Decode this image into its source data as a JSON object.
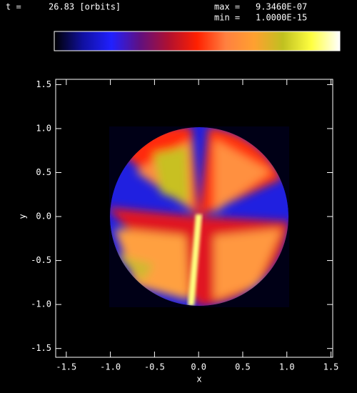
{
  "chart_data": {
    "type": "image",
    "time_label": "t =",
    "time": "26.83 [orbits]",
    "colorbar": {
      "max_label": "max =",
      "max": {
        "value": 9.346e-07,
        "label": "9.3460E-07"
      },
      "min_label": "min =",
      "min": {
        "value": 1e-15,
        "label": "1.0000E-15"
      },
      "colormap": [
        "#000000",
        "#1010a0",
        "#2020ff",
        "#601080",
        "#b01030",
        "#ff2000",
        "#ff8040",
        "#ffa030",
        "#c0c020",
        "#ffff40",
        "#ffffff"
      ]
    },
    "x_label": "x",
    "y_label": "y",
    "xlim": [
      -1.62,
      1.52
    ],
    "ylim": [
      -1.6,
      1.56
    ],
    "xticks": [
      -1.5,
      {
        "value": -1,
        "label": "-1.0"
      },
      -0.5,
      {
        "value": 0,
        "label": "0.0"
      },
      0.5,
      {
        "value": 1,
        "label": "1.0"
      },
      1.5
    ],
    "yticks": [
      -1.5,
      {
        "value": -1,
        "label": "-1.0"
      },
      -0.5,
      {
        "value": 0,
        "label": "0.0"
      },
      0.5,
      {
        "value": 1,
        "label": "1.0"
      },
      1.5
    ]
  }
}
